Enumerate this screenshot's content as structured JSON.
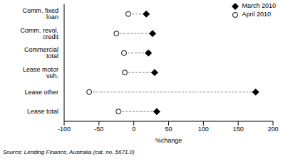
{
  "chart_data": {
    "type": "scatter",
    "orientation": "horizontal",
    "categories": [
      "Comm. fixed loan",
      "Comm. revol. credit",
      "Commercial total",
      "Lease motor veh.",
      "Lease other",
      "Lease total"
    ],
    "series": [
      {
        "name": "March 2010",
        "color": "#000000",
        "marker": "diamond",
        "values": [
          18,
          27,
          21,
          30,
          175,
          33
        ]
      },
      {
        "name": "April 2010",
        "color": "#000000",
        "marker": "open_circle",
        "values": [
          -8,
          -25,
          -14,
          -13,
          -64,
          -22
        ]
      }
    ],
    "x_label": "%change",
    "xlim": [
      -100,
      200
    ],
    "xticks": [
      -100,
      -50,
      0,
      50,
      100,
      150,
      200
    ],
    "grid": false,
    "legend": "upper right",
    "annotations": [
      "Source: Lending Finance, Australia (cat. no. 5671.0)"
    ]
  }
}
